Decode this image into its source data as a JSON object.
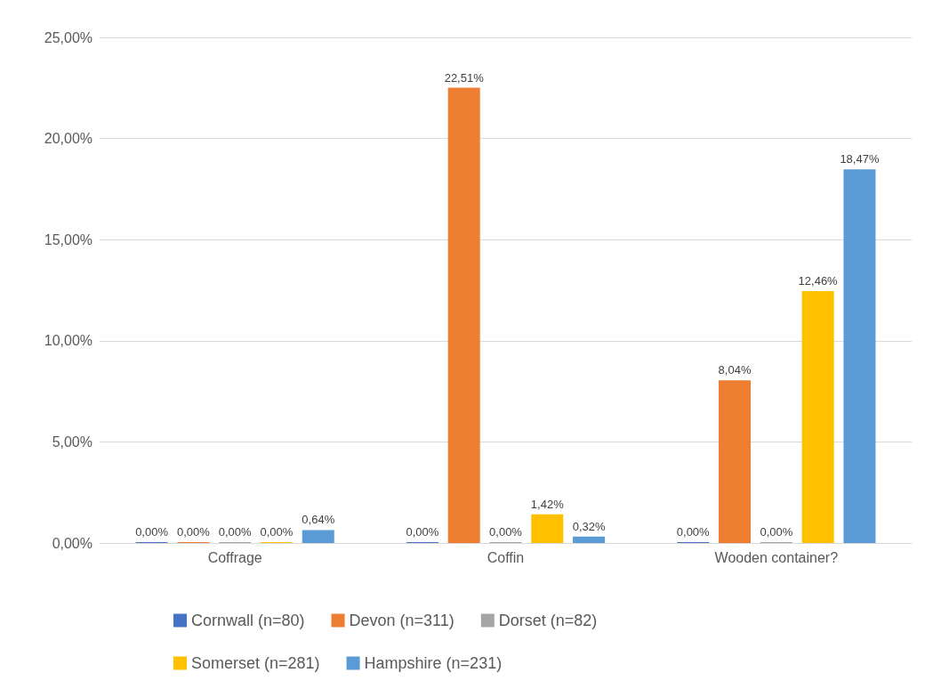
{
  "chart_data": {
    "type": "bar",
    "categories": [
      "Coffrage",
      "Coffin",
      "Wooden container?"
    ],
    "series": [
      {
        "name": "Cornwall (n=80)",
        "color": "#4472c4",
        "values": [
          0,
          0,
          0
        ],
        "value_labels": [
          "0,00%",
          "0,00%",
          "0,00%"
        ]
      },
      {
        "name": "Devon (n=311)",
        "color": "#ed7d31",
        "values": [
          0,
          22.51,
          8.04
        ],
        "value_labels": [
          "0,00%",
          "22,51%",
          "8,04%"
        ]
      },
      {
        "name": "Dorset (n=82)",
        "color": "#a5a5a5",
        "values": [
          0,
          0,
          0
        ],
        "value_labels": [
          "0,00%",
          "0,00%",
          "0,00%"
        ]
      },
      {
        "name": "Somerset (n=281)",
        "color": "#ffc000",
        "values": [
          0,
          1.42,
          12.46
        ],
        "value_labels": [
          "0,00%",
          "1,42%",
          "12,46%"
        ]
      },
      {
        "name": "Hampshire (n=231)",
        "color": "#5b9bd5",
        "values": [
          0.64,
          0.32,
          18.47
        ],
        "value_labels": [
          "0,64%",
          "0,32%",
          "18,47%"
        ]
      }
    ],
    "ylim": [
      0,
      25
    ],
    "yticks": [
      {
        "value": 0,
        "label": "0,00%"
      },
      {
        "value": 5,
        "label": "5,00%"
      },
      {
        "value": 10,
        "label": "10,00%"
      },
      {
        "value": 15,
        "label": "15,00%"
      },
      {
        "value": 20,
        "label": "20,00%"
      },
      {
        "value": 25,
        "label": "25,00%"
      }
    ],
    "grid": "y",
    "legend": "bottom"
  }
}
